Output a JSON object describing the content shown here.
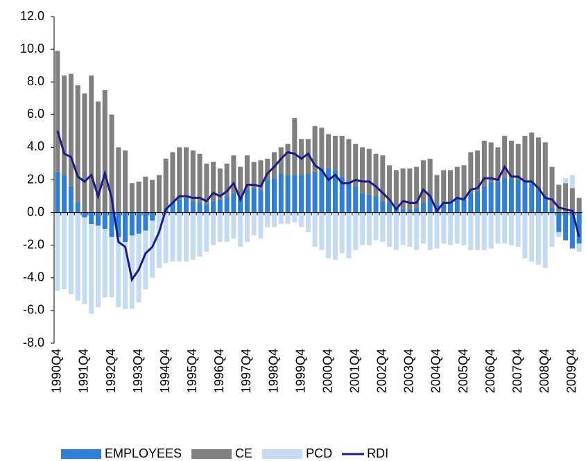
{
  "chart_data": {
    "type": "bar",
    "stacked": true,
    "categories": [
      "1990Q4",
      null,
      null,
      null,
      "1991Q4",
      null,
      null,
      null,
      "1992Q4",
      null,
      null,
      null,
      "1993Q4",
      null,
      null,
      null,
      "1994Q4",
      null,
      null,
      null,
      "1995Q4",
      null,
      null,
      null,
      "1996Q4",
      null,
      null,
      null,
      "1997Q4",
      null,
      null,
      null,
      "1998Q4",
      null,
      null,
      null,
      "1999Q4",
      null,
      null,
      null,
      "2000Q4",
      null,
      null,
      null,
      "2001Q4",
      null,
      null,
      null,
      "2002Q4",
      null,
      null,
      null,
      "2003Q4",
      null,
      null,
      null,
      "2004Q4",
      null,
      null,
      null,
      "2005Q4",
      null,
      null,
      null,
      "2006Q4",
      null,
      null,
      null,
      "2007Q4",
      null,
      null,
      null,
      "2008Q4",
      null,
      null,
      null,
      "2009Q4",
      null
    ],
    "series": [
      {
        "name": "EMPLOYEES",
        "type": "bar",
        "color": "#2f7fd6",
        "values": [
          2.5,
          2.3,
          1.6,
          0.6,
          -0.3,
          -0.7,
          -0.8,
          -1.0,
          -1.5,
          -1.5,
          -1.8,
          -1.4,
          -1.3,
          -1.1,
          -0.5,
          0.0,
          0.3,
          0.6,
          0.8,
          0.9,
          0.7,
          0.6,
          0.5,
          0.7,
          0.8,
          1.0,
          1.2,
          0.9,
          1.4,
          1.5,
          1.4,
          2.0,
          2.1,
          2.4,
          2.3,
          2.3,
          2.3,
          2.4,
          2.5,
          2.7,
          2.7,
          2.6,
          2.2,
          1.9,
          1.6,
          1.2,
          1.1,
          1.0,
          0.7,
          0.6,
          0.3,
          0.2,
          0.2,
          0.3,
          0.6,
          0.9,
          0.5,
          0.5,
          0.7,
          0.9,
          0.8,
          1.2,
          1.3,
          1.6,
          1.9,
          1.9,
          2.1,
          2.1,
          2.0,
          2.0,
          1.8,
          1.4,
          1.0,
          0.3,
          -1.2,
          -1.7,
          -2.2,
          -1.9
        ]
      },
      {
        "name": "CE",
        "type": "bar",
        "color": "#808080",
        "values": [
          7.4,
          6.1,
          6.9,
          7.2,
          7.3,
          8.4,
          6.8,
          7.5,
          6.0,
          4.0,
          3.8,
          1.8,
          1.9,
          2.2,
          2.0,
          2.3,
          3.0,
          3.1,
          3.2,
          3.1,
          3.1,
          3.0,
          2.5,
          2.4,
          1.9,
          2.0,
          2.3,
          1.9,
          2.1,
          1.6,
          1.8,
          1.3,
          1.6,
          1.6,
          1.9,
          3.5,
          2.2,
          2.1,
          2.8,
          2.5,
          2.1,
          2.1,
          2.5,
          2.6,
          2.6,
          2.8,
          2.8,
          2.6,
          2.8,
          2.3,
          2.3,
          2.5,
          2.5,
          2.5,
          2.6,
          2.4,
          1.8,
          2.1,
          1.9,
          1.9,
          2.1,
          2.5,
          2.5,
          2.8,
          2.4,
          2.1,
          2.6,
          2.3,
          2.2,
          2.7,
          3.1,
          3.2,
          3.3,
          2.5,
          1.7,
          1.8,
          1.5,
          0.9
        ]
      },
      {
        "name": "PCD",
        "type": "bar",
        "color": "#c5dbf1",
        "values": [
          -4.8,
          -4.7,
          -5.0,
          -5.4,
          -5.3,
          -5.5,
          -5.0,
          -4.2,
          -3.7,
          -4.3,
          -4.1,
          -4.5,
          -4.2,
          -3.6,
          -3.5,
          -3.4,
          -3.1,
          -3.0,
          -3.0,
          -3.0,
          -2.9,
          -2.7,
          -2.4,
          -2.0,
          -1.8,
          -1.8,
          -1.6,
          -2.1,
          -1.8,
          -1.4,
          -1.6,
          -0.9,
          -0.9,
          -0.7,
          -0.7,
          -0.6,
          -0.9,
          -1.2,
          -2.1,
          -2.3,
          -2.8,
          -2.9,
          -2.5,
          -2.8,
          -2.3,
          -2.0,
          -2.0,
          -1.7,
          -1.8,
          -2.1,
          -2.3,
          -2.0,
          -2.1,
          -2.3,
          -1.9,
          -2.3,
          -2.2,
          -1.9,
          -2.0,
          -1.9,
          -2.0,
          -2.3,
          -2.3,
          -2.3,
          -2.2,
          -1.9,
          -1.9,
          -2.0,
          -2.1,
          -2.8,
          -3.0,
          -3.2,
          -3.4,
          -2.1,
          -0.3,
          0.3,
          0.8,
          -0.5
        ]
      },
      {
        "name": "RDI",
        "type": "line",
        "color": "#1a1a8c",
        "values": [
          5.0,
          3.6,
          3.4,
          2.2,
          1.9,
          2.3,
          1.0,
          2.4,
          0.9,
          -1.8,
          -2.1,
          -4.1,
          -3.5,
          -2.5,
          -2.1,
          -1.2,
          0.2,
          0.6,
          1.0,
          1.0,
          0.9,
          0.9,
          0.7,
          1.2,
          1.0,
          1.3,
          1.8,
          0.8,
          1.7,
          1.7,
          1.6,
          2.4,
          2.8,
          3.3,
          3.7,
          3.6,
          3.3,
          3.6,
          2.9,
          2.6,
          2.0,
          2.3,
          1.8,
          1.8,
          2.0,
          1.9,
          1.9,
          1.6,
          1.2,
          0.8,
          0.2,
          0.7,
          0.6,
          0.6,
          1.4,
          1.0,
          0.1,
          0.6,
          0.6,
          0.9,
          0.8,
          1.4,
          1.5,
          2.1,
          2.1,
          2.0,
          2.8,
          2.2,
          2.2,
          1.9,
          1.9,
          1.5,
          0.9,
          0.8,
          0.3,
          0.2,
          0.1,
          -1.5
        ]
      }
    ],
    "ylim": [
      -8,
      12
    ],
    "yticks": [
      {
        "value": -8,
        "label": "-8.0"
      },
      {
        "value": -6,
        "label": "-6.0"
      },
      {
        "value": -4,
        "label": "-4.0"
      },
      {
        "value": -2,
        "label": "-2.0"
      },
      {
        "value": 0,
        "label": "0.0"
      },
      {
        "value": 2,
        "label": "2.0"
      },
      {
        "value": 4,
        "label": "4.0"
      },
      {
        "value": 6,
        "label": "6.0"
      },
      {
        "value": 8,
        "label": "8.0"
      },
      {
        "value": 10,
        "label": "10.0"
      },
      {
        "value": 12,
        "label": "12.0"
      }
    ],
    "grid": false,
    "legend": "bottom"
  }
}
